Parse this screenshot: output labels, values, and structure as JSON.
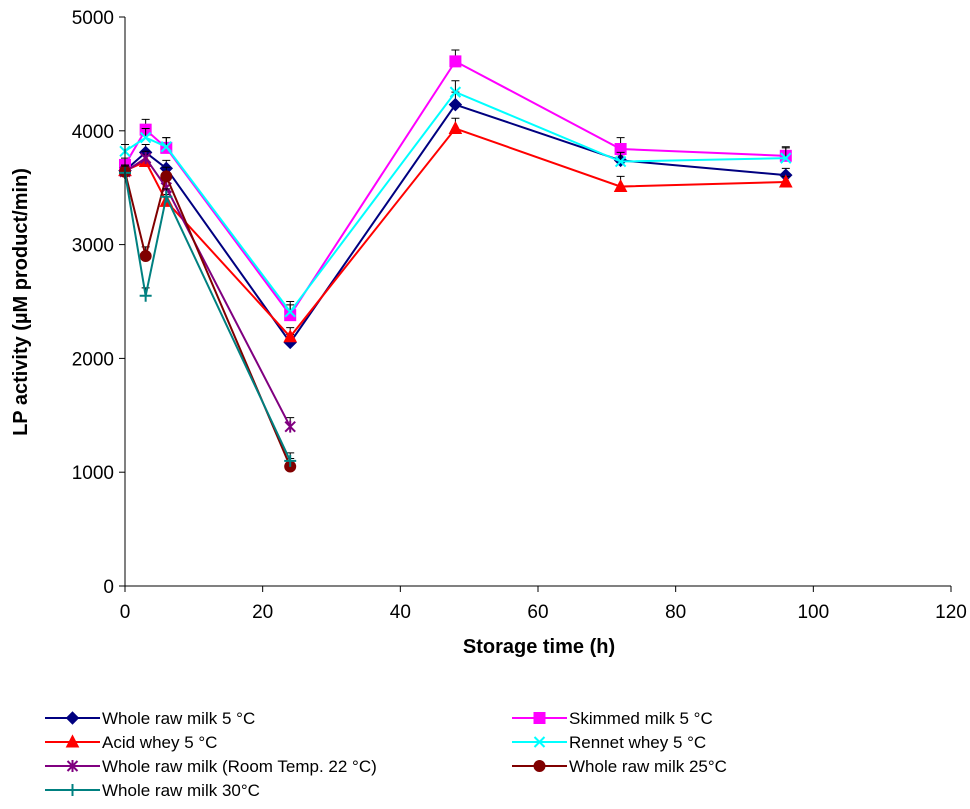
{
  "chart_data": {
    "type": "line",
    "xlabel": "Storage time (h)",
    "ylabel": "LP activity (µM product/min)",
    "xlim": [
      0,
      120
    ],
    "ylim": [
      0,
      5000
    ],
    "x_ticks": [
      "0",
      "20",
      "40",
      "60",
      "80",
      "100",
      "120"
    ],
    "y_ticks": [
      "0",
      "1000",
      "2000",
      "3000",
      "4000",
      "5000"
    ],
    "grid": false,
    "legend_position": "bottom",
    "series": [
      {
        "name": "Whole raw milk 5 °C",
        "color": "#000080",
        "marker": "diamond",
        "x": [
          0,
          3,
          6,
          24,
          48,
          72,
          96
        ],
        "y": [
          3650,
          3810,
          3670,
          2140,
          4230,
          3740,
          3610
        ],
        "err": [
          60,
          70,
          70,
          70,
          110,
          50,
          60
        ]
      },
      {
        "name": "Skimmed milk 5 °C",
        "color": "#FF00FF",
        "marker": "square",
        "x": [
          0,
          3,
          6,
          24,
          48,
          72,
          96
        ],
        "y": [
          3700,
          4010,
          3850,
          2380,
          4610,
          3840,
          3780
        ],
        "err": [
          60,
          90,
          90,
          90,
          100,
          100,
          80
        ]
      },
      {
        "name": "Acid whey 5 °C",
        "color": "#FF0000",
        "marker": "triangle",
        "x": [
          0,
          3,
          6,
          24,
          48,
          72,
          96
        ],
        "y": [
          3650,
          3730,
          3380,
          2190,
          4020,
          3510,
          3550
        ],
        "err": [
          50,
          60,
          60,
          80,
          90,
          90,
          50
        ]
      },
      {
        "name": "Rennet whey 5 °C",
        "color": "#00FFFF",
        "marker": "x",
        "x": [
          0,
          3,
          6,
          24,
          48,
          72,
          96
        ],
        "y": [
          3820,
          3940,
          3860,
          2410,
          4340,
          3730,
          3760
        ],
        "err": [
          60,
          80,
          80,
          90,
          100,
          80,
          90
        ]
      },
      {
        "name": "Whole raw milk (Room Temp. 22 °C)",
        "color": "#800080",
        "marker": "star",
        "x": [
          0,
          3,
          6,
          24
        ],
        "y": [
          3640,
          3760,
          3500,
          1400
        ],
        "err": [
          60,
          60,
          70,
          80
        ]
      },
      {
        "name": "Whole raw milk 25°C",
        "color": "#800000",
        "marker": "circle",
        "x": [
          0,
          3,
          6,
          24
        ],
        "y": [
          3640,
          2900,
          3600,
          1050
        ],
        "err": [
          60,
          80,
          80,
          70
        ]
      },
      {
        "name": "Whole raw milk 30°C",
        "color": "#008080",
        "marker": "plus",
        "x": [
          0,
          3,
          6,
          24
        ],
        "y": [
          3630,
          2550,
          3420,
          1100
        ],
        "err": [
          60,
          70,
          70,
          70
        ]
      }
    ]
  }
}
